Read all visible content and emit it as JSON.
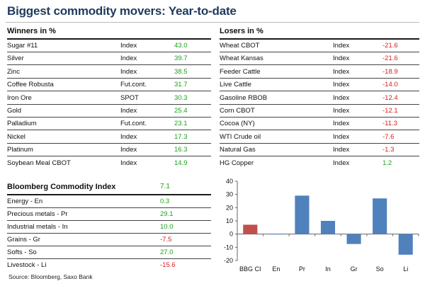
{
  "title": "Biggest commodity movers: Year-to-date",
  "winners": {
    "header": "Winners in %",
    "rows": [
      {
        "name": "Sugar #11",
        "type": "Index",
        "value": "43.0"
      },
      {
        "name": "Silver",
        "type": "Index",
        "value": "39.7"
      },
      {
        "name": "Zinc",
        "type": "Index",
        "value": "38.5"
      },
      {
        "name": "Coffee Robusta",
        "type": "Fut.cont.",
        "value": "31.7"
      },
      {
        "name": "Iron Ore",
        "type": "SPOT",
        "value": "30.3"
      },
      {
        "name": "Gold",
        "type": "Index",
        "value": "25.4"
      },
      {
        "name": "Palladium",
        "type": "Fut.cont.",
        "value": "23.1"
      },
      {
        "name": "Nickel",
        "type": "Index",
        "value": "17.3"
      },
      {
        "name": "Platinum",
        "type": "Index",
        "value": "16.3"
      },
      {
        "name": "Soybean Meal CBOT",
        "type": "Index",
        "value": "14.9"
      }
    ]
  },
  "losers": {
    "header": "Losers in %",
    "rows": [
      {
        "name": "Wheat CBOT",
        "type": "Index",
        "value": "-21.6"
      },
      {
        "name": "Wheat Kansas",
        "type": "Index",
        "value": "-21.6"
      },
      {
        "name": "Feeder Cattle",
        "type": "Index",
        "value": "-18.9"
      },
      {
        "name": "Live Cattle",
        "type": "Index",
        "value": "-14.0"
      },
      {
        "name": "Gasoline RBOB",
        "type": "Index",
        "value": "-12.4"
      },
      {
        "name": "Corn CBOT",
        "type": "Index",
        "value": "-12.1"
      },
      {
        "name": "Cocoa (NY)",
        "type": "Index",
        "value": "-11.3"
      },
      {
        "name": "WTI Crude oil",
        "type": "Index",
        "value": "-7.6"
      },
      {
        "name": "Natural Gas",
        "type": "Index",
        "value": "-1.3"
      },
      {
        "name": "HG Copper",
        "type": "Index",
        "value": "1.2"
      }
    ]
  },
  "bcom": {
    "header": "Bloomberg Commodity Index",
    "header_value": "7.1",
    "rows": [
      {
        "name": "Energy - En",
        "value": "0.3"
      },
      {
        "name": "Precious metals - Pr",
        "value": "29.1"
      },
      {
        "name": "Industrial metals - In",
        "value": "10.0"
      },
      {
        "name": "Grains - Gr",
        "value": "-7.5"
      },
      {
        "name": "Softs - So",
        "value": "27.0"
      },
      {
        "name": "Livestock - Li",
        "value": "-15.6"
      }
    ]
  },
  "source": "Source: Bloomberg, Saxo Bank",
  "colors": {
    "positive": "#1aa31a",
    "negative": "#d62020",
    "bar_index": "#c0504d",
    "bar_sector": "#4f81bd"
  },
  "chart_data": {
    "type": "bar",
    "categories": [
      "BBG CI",
      "En",
      "Pr",
      "In",
      "Gr",
      "So",
      "Li"
    ],
    "values": [
      7.1,
      0.3,
      29.1,
      10.0,
      -7.5,
      27.0,
      -15.6
    ],
    "ylim": [
      -20,
      40
    ],
    "yticks": [
      "40",
      "30",
      "20",
      "10",
      "0",
      "-10",
      "-20"
    ],
    "ytick_values": [
      40,
      30,
      20,
      10,
      0,
      -10,
      -20
    ],
    "highlight_first": true,
    "grid": false
  }
}
